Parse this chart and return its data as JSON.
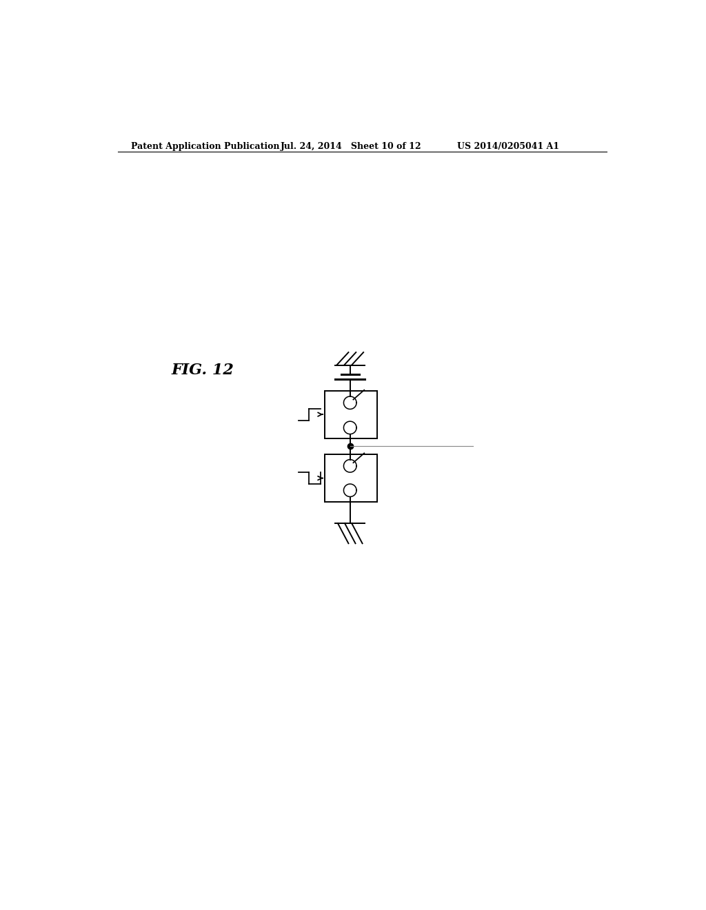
{
  "background_color": "#ffffff",
  "header_left": "Patent Application Publication",
  "header_mid": "Jul. 24, 2014   Sheet 10 of 12",
  "header_right": "US 2014/0205041 A1",
  "fig_label": "FIG. 12",
  "line_color": "#000000",
  "circuit_lw": 1.4
}
